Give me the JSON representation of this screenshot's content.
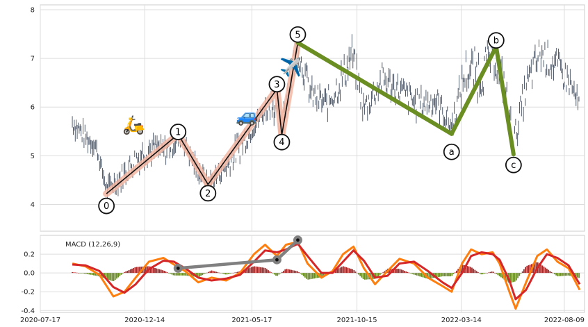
{
  "chart_data": [
    {
      "type": "line",
      "panel": "price",
      "xlim": [
        "2020-07-17",
        "2022-09-07"
      ],
      "ylim": [
        3.45,
        8.1
      ],
      "y_ticks": [
        4,
        5,
        6,
        7,
        8
      ],
      "x_ticks": [
        "2020-07-17",
        "2020-12-14",
        "2021-05-17",
        "2021-10-15",
        "2022-03-14",
        "2022-08-09"
      ],
      "grid": true,
      "price_envelope": [
        {
          "x": "2020-09-01",
          "low": 5.5,
          "high": 5.9
        },
        {
          "x": "2020-09-20",
          "low": 5.2,
          "high": 5.55
        },
        {
          "x": "2020-10-05",
          "low": 5.1,
          "high": 5.3
        },
        {
          "x": "2020-10-20",
          "low": 4.2,
          "high": 4.45
        },
        {
          "x": "2020-11-10",
          "low": 4.35,
          "high": 4.75
        },
        {
          "x": "2020-12-01",
          "low": 4.7,
          "high": 5.15
        },
        {
          "x": "2020-12-20",
          "low": 4.9,
          "high": 5.4
        },
        {
          "x": "2021-01-10",
          "low": 4.85,
          "high": 5.3
        },
        {
          "x": "2021-02-05",
          "low": 5.25,
          "high": 5.55
        },
        {
          "x": "2021-02-25",
          "low": 4.6,
          "high": 4.95
        },
        {
          "x": "2021-03-15",
          "low": 4.3,
          "high": 4.55
        },
        {
          "x": "2021-04-10",
          "low": 4.6,
          "high": 4.95
        },
        {
          "x": "2021-05-01",
          "low": 4.95,
          "high": 5.5
        },
        {
          "x": "2021-05-25",
          "low": 5.6,
          "high": 5.85
        },
        {
          "x": "2021-06-15",
          "low": 5.9,
          "high": 6.4
        },
        {
          "x": "2021-06-27",
          "low": 5.35,
          "high": 5.8
        },
        {
          "x": "2021-07-10",
          "low": 6.2,
          "high": 7.0
        },
        {
          "x": "2021-07-22",
          "low": 6.9,
          "high": 7.4
        },
        {
          "x": "2021-08-10",
          "low": 6.0,
          "high": 6.5
        },
        {
          "x": "2021-09-01",
          "low": 5.8,
          "high": 6.3
        },
        {
          "x": "2021-09-25",
          "low": 6.3,
          "high": 6.95
        },
        {
          "x": "2021-10-08",
          "low": 6.8,
          "high": 7.4
        },
        {
          "x": "2021-10-25",
          "low": 5.7,
          "high": 6.2
        },
        {
          "x": "2021-11-20",
          "low": 6.3,
          "high": 6.85
        },
        {
          "x": "2021-12-15",
          "low": 6.1,
          "high": 6.6
        },
        {
          "x": "2022-01-10",
          "low": 5.8,
          "high": 6.3
        },
        {
          "x": "2022-02-05",
          "low": 5.9,
          "high": 6.4
        },
        {
          "x": "2022-02-28",
          "low": 5.4,
          "high": 5.8
        },
        {
          "x": "2022-03-20",
          "low": 6.4,
          "high": 7.1
        },
        {
          "x": "2022-04-10",
          "low": 6.2,
          "high": 7.2
        },
        {
          "x": "2022-04-28",
          "low": 6.8,
          "high": 7.3
        },
        {
          "x": "2022-05-15",
          "low": 6.1,
          "high": 6.8
        },
        {
          "x": "2022-05-28",
          "low": 5.0,
          "high": 5.5
        },
        {
          "x": "2022-06-15",
          "low": 6.1,
          "high": 6.7
        },
        {
          "x": "2022-07-05",
          "low": 6.8,
          "high": 7.4
        },
        {
          "x": "2022-07-25",
          "low": 6.6,
          "high": 7.2
        },
        {
          "x": "2022-08-15",
          "low": 6.3,
          "high": 6.8
        },
        {
          "x": "2022-08-31",
          "low": 5.8,
          "high": 6.2
        }
      ],
      "impulse_wave": {
        "points": [
          {
            "label": "0",
            "x": "2020-10-20",
            "y": 4.22,
            "label_y": 3.97
          },
          {
            "label": "1",
            "x": "2021-01-31",
            "y": 5.44,
            "label_y": 5.49
          },
          {
            "label": "2",
            "x": "2021-03-15",
            "y": 4.41,
            "label_y": 4.23
          },
          {
            "label": "3",
            "x": "2021-06-22",
            "y": 6.37,
            "label_y": 6.47
          },
          {
            "label": "4",
            "x": "2021-06-29",
            "y": 5.43,
            "label_y": 5.28
          },
          {
            "label": "5",
            "x": "2021-07-22",
            "y": 7.32,
            "label_y": 7.49
          }
        ]
      },
      "corrective_wave": {
        "color": "#6b8e23",
        "points": [
          {
            "label": "5",
            "x": "2021-07-22",
            "y": 7.32
          },
          {
            "label": "a",
            "x": "2022-02-28",
            "y": 5.45,
            "label_y": 5.08
          },
          {
            "label": "b",
            "x": "2022-05-03",
            "y": 7.24,
            "label_y": 7.37
          },
          {
            "label": "c",
            "x": "2022-05-28",
            "y": 5.03,
            "label_y": 4.81
          }
        ]
      },
      "emoji_annotations": [
        {
          "glyph": "🛵",
          "x": "2020-11-28",
          "y": 5.62
        },
        {
          "glyph": "🚙",
          "x": "2021-05-10",
          "y": 5.8
        },
        {
          "glyph": "✈️",
          "x": "2021-07-12",
          "y": 6.8
        }
      ]
    },
    {
      "type": "bar",
      "panel": "macd",
      "label": "MACD (12,26,9)",
      "ylim": [
        -0.42,
        0.4
      ],
      "y_ticks": [
        -0.4,
        -0.2,
        0.0,
        0.2
      ],
      "colors": {
        "macd_line": "#ff7f0e",
        "signal_line": "#d62728",
        "hist_pos": "#a52a2a",
        "hist_neg": "#6b8e23",
        "connector": "#808080"
      },
      "macd_line": [
        [
          "2020-09-01",
          0.1
        ],
        [
          "2020-09-20",
          0.07
        ],
        [
          "2020-10-10",
          -0.02
        ],
        [
          "2020-10-30",
          -0.25
        ],
        [
          "2020-11-15",
          -0.2
        ],
        [
          "2020-12-01",
          -0.05
        ],
        [
          "2020-12-20",
          0.12
        ],
        [
          "2021-01-10",
          0.16
        ],
        [
          "2021-01-25",
          0.09
        ],
        [
          "2021-02-10",
          0.02
        ],
        [
          "2021-03-01",
          -0.1
        ],
        [
          "2021-03-20",
          -0.05
        ],
        [
          "2021-04-10",
          -0.08
        ],
        [
          "2021-04-30",
          0.0
        ],
        [
          "2021-05-20",
          0.2
        ],
        [
          "2021-06-05",
          0.3
        ],
        [
          "2021-06-22",
          0.18
        ],
        [
          "2021-07-05",
          0.3
        ],
        [
          "2021-07-22",
          0.33
        ],
        [
          "2021-08-05",
          0.1
        ],
        [
          "2021-08-25",
          -0.05
        ],
        [
          "2021-09-10",
          0.02
        ],
        [
          "2021-09-25",
          0.2
        ],
        [
          "2021-10-10",
          0.28
        ],
        [
          "2021-10-25",
          0.05
        ],
        [
          "2021-11-10",
          -0.12
        ],
        [
          "2021-11-28",
          0.02
        ],
        [
          "2021-12-15",
          0.15
        ],
        [
          "2022-01-05",
          0.1
        ],
        [
          "2022-01-25",
          -0.05
        ],
        [
          "2022-02-15",
          -0.14
        ],
        [
          "2022-02-28",
          -0.2
        ],
        [
          "2022-03-15",
          0.1
        ],
        [
          "2022-03-28",
          0.25
        ],
        [
          "2022-04-12",
          0.2
        ],
        [
          "2022-04-28",
          0.22
        ],
        [
          "2022-05-08",
          0.1
        ],
        [
          "2022-05-22",
          -0.2
        ],
        [
          "2022-05-31",
          -0.38
        ],
        [
          "2022-06-15",
          -0.1
        ],
        [
          "2022-07-01",
          0.18
        ],
        [
          "2022-07-15",
          0.25
        ],
        [
          "2022-07-30",
          0.12
        ],
        [
          "2022-08-15",
          0.05
        ],
        [
          "2022-08-31",
          -0.18
        ]
      ],
      "signal_line": [
        [
          "2020-09-01",
          0.09
        ],
        [
          "2020-09-20",
          0.08
        ],
        [
          "2020-10-10",
          0.02
        ],
        [
          "2020-10-30",
          -0.15
        ],
        [
          "2020-11-15",
          -0.21
        ],
        [
          "2020-12-01",
          -0.12
        ],
        [
          "2020-12-20",
          0.04
        ],
        [
          "2021-01-10",
          0.13
        ],
        [
          "2021-01-25",
          0.12
        ],
        [
          "2021-02-10",
          0.05
        ],
        [
          "2021-03-01",
          -0.05
        ],
        [
          "2021-03-20",
          -0.08
        ],
        [
          "2021-04-10",
          -0.06
        ],
        [
          "2021-04-30",
          -0.02
        ],
        [
          "2021-05-20",
          0.12
        ],
        [
          "2021-06-05",
          0.24
        ],
        [
          "2021-06-22",
          0.22
        ],
        [
          "2021-07-05",
          0.25
        ],
        [
          "2021-07-22",
          0.31
        ],
        [
          "2021-08-05",
          0.18
        ],
        [
          "2021-08-25",
          0.0
        ],
        [
          "2021-09-10",
          0.0
        ],
        [
          "2021-09-25",
          0.12
        ],
        [
          "2021-10-10",
          0.24
        ],
        [
          "2021-10-25",
          0.13
        ],
        [
          "2021-11-10",
          -0.05
        ],
        [
          "2021-11-28",
          -0.03
        ],
        [
          "2021-12-15",
          0.1
        ],
        [
          "2022-01-05",
          0.12
        ],
        [
          "2022-01-25",
          0.02
        ],
        [
          "2022-02-15",
          -0.1
        ],
        [
          "2022-02-28",
          -0.16
        ],
        [
          "2022-03-15",
          0.0
        ],
        [
          "2022-03-28",
          0.18
        ],
        [
          "2022-04-12",
          0.22
        ],
        [
          "2022-04-28",
          0.2
        ],
        [
          "2022-05-08",
          0.14
        ],
        [
          "2022-05-22",
          -0.08
        ],
        [
          "2022-05-31",
          -0.28
        ],
        [
          "2022-06-15",
          -0.18
        ],
        [
          "2022-07-01",
          0.05
        ],
        [
          "2022-07-15",
          0.2
        ],
        [
          "2022-07-30",
          0.16
        ],
        [
          "2022-08-15",
          0.08
        ],
        [
          "2022-08-31",
          -0.12
        ]
      ],
      "connector_points": [
        {
          "x": "2021-01-31",
          "y": 0.05
        },
        {
          "x": "2021-06-22",
          "y": 0.14
        },
        {
          "x": "2021-07-22",
          "y": 0.35
        }
      ]
    }
  ]
}
